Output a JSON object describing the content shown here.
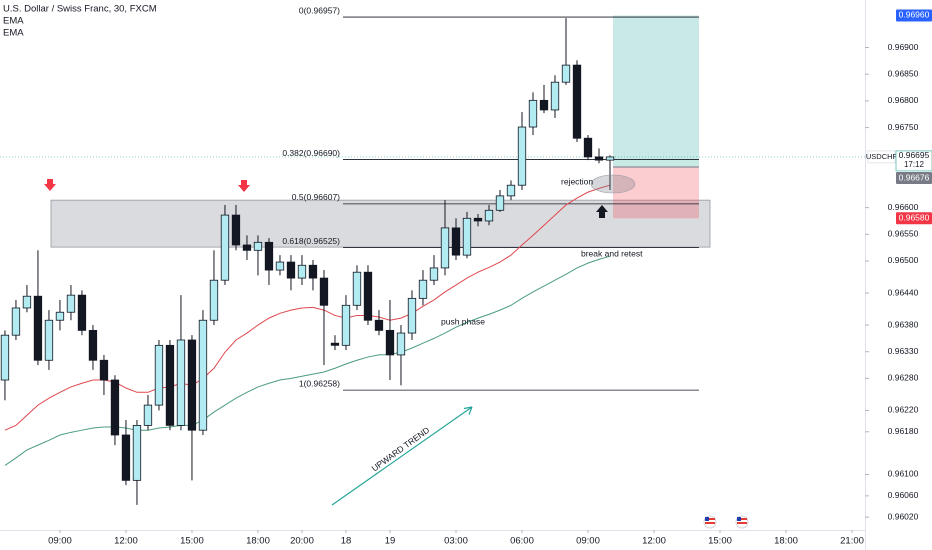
{
  "chart_data": {
    "type": "candlestick",
    "title": "U.S. Dollar / Swiss Franc, 30, FXCM",
    "up_color": "#b2ebf2",
    "down_color": "#131722",
    "xlim": [
      -0.45,
      78.18
    ],
    "ylim": [
      0.95996,
      0.96989
    ],
    "grid": false,
    "xticks": [
      {
        "value": 5,
        "label": "09:00"
      },
      {
        "value": 11,
        "label": "12:00"
      },
      {
        "value": 17,
        "label": "15:00"
      },
      {
        "value": 23,
        "label": "18:00"
      },
      {
        "value": 27,
        "label": "20:00"
      },
      {
        "value": 31,
        "label": "18"
      },
      {
        "value": 35,
        "label": "19"
      },
      {
        "value": 41,
        "label": "03:00"
      },
      {
        "value": 47,
        "label": "06:00"
      },
      {
        "value": 53,
        "label": "09:00"
      },
      {
        "value": 59,
        "label": "12:00"
      },
      {
        "value": 65,
        "label": "15:00"
      },
      {
        "value": 71,
        "label": "18:00"
      },
      {
        "value": 77,
        "label": "21:00"
      }
    ],
    "yticks": [
      {
        "value": 0.969,
        "label": "0.96900"
      },
      {
        "value": 0.9685,
        "label": "0.96850"
      },
      {
        "value": 0.968,
        "label": "0.96800"
      },
      {
        "value": 0.9675,
        "label": "0.96750"
      },
      {
        "value": 0.966,
        "label": "0.96600"
      },
      {
        "value": 0.9655,
        "label": "0.96550"
      },
      {
        "value": 0.965,
        "label": "0.96500"
      },
      {
        "value": 0.9644,
        "label": "0.96440"
      },
      {
        "value": 0.9638,
        "label": "0.96380"
      },
      {
        "value": 0.9633,
        "label": "0.96330"
      },
      {
        "value": 0.9628,
        "label": "0.96280"
      },
      {
        "value": 0.9622,
        "label": "0.96220"
      },
      {
        "value": 0.9618,
        "label": "0.96180"
      },
      {
        "value": 0.961,
        "label": "0.96100"
      },
      {
        "value": 0.9606,
        "label": "0.96060"
      },
      {
        "value": 0.9602,
        "label": "0.96020"
      }
    ],
    "open": [
      0.96277,
      0.96361,
      0.96412,
      0.96434,
      0.96314,
      0.96389,
      0.96404,
      0.96436,
      0.9637,
      0.96314,
      0.96277,
      0.96174,
      0.96089,
      0.96192,
      0.9623,
      0.96342,
      0.96192,
      0.96352,
      0.96183,
      0.96389,
      0.96464,
      0.96586,
      0.9653,
      0.9652,
      0.96535,
      0.96483,
      0.96498,
      0.96468,
      0.96492,
      0.96468,
      0.96346,
      0.96342,
      0.96417,
      0.96479,
      0.96389,
      0.9637,
      0.96324,
      0.96365,
      0.9643,
      0.96464,
      0.96487,
      0.96562,
      0.96511,
      0.9658,
      0.96575,
      0.96595,
      0.96622,
      0.96642,
      0.96751,
      0.96801,
      0.96783,
      0.96835,
      0.96867,
      0.9673,
      0.96695,
      0.96689
    ],
    "high": [
      0.9637,
      0.96427,
      0.96455,
      0.9652,
      0.96408,
      0.96427,
      0.96455,
      0.96445,
      0.9638,
      0.96324,
      0.96286,
      0.96202,
      0.96202,
      0.96249,
      0.96352,
      0.96352,
      0.96436,
      0.96361,
      0.96408,
      0.9652,
      0.96605,
      0.96605,
      0.96548,
      0.96548,
      0.96543,
      0.96511,
      0.96511,
      0.96511,
      0.96502,
      0.96483,
      0.96361,
      0.96436,
      0.96492,
      0.96492,
      0.96408,
      0.96427,
      0.9638,
      0.96445,
      0.96483,
      0.96511,
      0.96614,
      0.9658,
      0.96592,
      0.96588,
      0.96605,
      0.96633,
      0.96651,
      0.96779,
      0.96816,
      0.9683,
      0.96848,
      0.96955,
      0.96876,
      0.96736,
      0.96711,
      0.96698
    ],
    "low": [
      0.96239,
      0.96352,
      0.96404,
      0.96305,
      0.96296,
      0.9637,
      0.96389,
      0.96361,
      0.96296,
      0.96249,
      0.96155,
      0.9608,
      0.96043,
      0.96183,
      0.9622,
      0.96183,
      0.96183,
      0.96089,
      0.96174,
      0.9638,
      0.96455,
      0.9652,
      0.96502,
      0.96473,
      0.96455,
      0.96473,
      0.96445,
      0.96455,
      0.96445,
      0.96305,
      0.96333,
      0.96333,
      0.96408,
      0.9638,
      0.96361,
      0.96277,
      0.96267,
      0.96352,
      0.96417,
      0.96455,
      0.96473,
      0.96502,
      0.96505,
      0.96565,
      0.96567,
      0.96592,
      0.96614,
      0.96633,
      0.96736,
      0.96777,
      0.96768,
      0.9683,
      0.96723,
      0.96689,
      0.96683,
      0.96633
    ],
    "close": [
      0.96361,
      0.96412,
      0.96434,
      0.96314,
      0.96389,
      0.96404,
      0.96436,
      0.9637,
      0.96314,
      0.96277,
      0.96174,
      0.96089,
      0.96192,
      0.9623,
      0.96342,
      0.96192,
      0.96352,
      0.96183,
      0.96389,
      0.96464,
      0.96586,
      0.9653,
      0.9652,
      0.96535,
      0.96483,
      0.96498,
      0.96468,
      0.96492,
      0.96468,
      0.96417,
      0.96342,
      0.96417,
      0.96479,
      0.96389,
      0.9637,
      0.96324,
      0.96365,
      0.9643,
      0.96464,
      0.96487,
      0.96562,
      0.96511,
      0.9658,
      0.96575,
      0.96595,
      0.96622,
      0.96642,
      0.96751,
      0.96801,
      0.96783,
      0.96835,
      0.96867,
      0.9673,
      0.96695,
      0.96689,
      0.96695
    ],
    "series": [
      {
        "name": "EMA",
        "color": "#e0484f",
        "values": [
          0.96183,
          0.96192,
          0.96211,
          0.9623,
          0.96243,
          0.96254,
          0.96264,
          0.96271,
          0.96277,
          0.96277,
          0.96273,
          0.96262,
          0.96254,
          0.96254,
          0.96262,
          0.96264,
          0.96271,
          0.96267,
          0.9628,
          0.96299,
          0.96329,
          0.96352,
          0.96365,
          0.9638,
          0.96393,
          0.96402,
          0.96408,
          0.96412,
          0.96413,
          0.96408,
          0.96398,
          0.96393,
          0.96398,
          0.96398,
          0.96395,
          0.96389,
          0.96393,
          0.96402,
          0.96415,
          0.96427,
          0.96442,
          0.96455,
          0.96468,
          0.96479,
          0.96488,
          0.96498,
          0.96511,
          0.9653,
          0.96548,
          0.96567,
          0.96586,
          0.96605,
          0.96618,
          0.96629,
          0.96636,
          0.96642
        ]
      },
      {
        "name": "EMA",
        "color": "#4c9c80",
        "values": [
          0.96117,
          0.96131,
          0.96146,
          0.96155,
          0.96164,
          0.96174,
          0.96179,
          0.96183,
          0.96187,
          0.96189,
          0.96189,
          0.96187,
          0.96183,
          0.96183,
          0.96187,
          0.96189,
          0.96192,
          0.96192,
          0.96202,
          0.96217,
          0.9623,
          0.96243,
          0.96254,
          0.96264,
          0.96271,
          0.96277,
          0.9628,
          0.96284,
          0.96288,
          0.96292,
          0.96299,
          0.96307,
          0.96314,
          0.9632,
          0.96324,
          0.96325,
          0.96329,
          0.96337,
          0.96346,
          0.96355,
          0.96365,
          0.96376,
          0.96385,
          0.96393,
          0.964,
          0.96408,
          0.96417,
          0.9643,
          0.96442,
          0.96453,
          0.96464,
          0.96475,
          0.96487,
          0.96496,
          0.96503,
          0.96509
        ]
      }
    ],
    "zone": [
      0.96526,
      0.96614
    ],
    "fib_levels": [
      {
        "value": 0.96957,
        "label": "0(0.96957)"
      },
      {
        "value": 0.9669,
        "label": "0.382(0.96690)"
      },
      {
        "value": 0.96607,
        "label": "0.5(0.96607)"
      },
      {
        "value": 0.96525,
        "label": "0.618(0.96525)"
      },
      {
        "value": 0.96258,
        "label": "1(0.96258)"
      }
    ],
    "position": {
      "target": {
        "value": 0.9696,
        "label": "0.96960"
      },
      "entry": 0.96676,
      "stop": {
        "value": 0.9658,
        "label": "0.96580"
      }
    },
    "last_price": {
      "symbol": "USDCHF",
      "value": 0.96695,
      "countdown": "17:12"
    },
    "annotations": [
      "rejection",
      "break and retest",
      "push phase",
      "UPWARD TREND"
    ]
  }
}
